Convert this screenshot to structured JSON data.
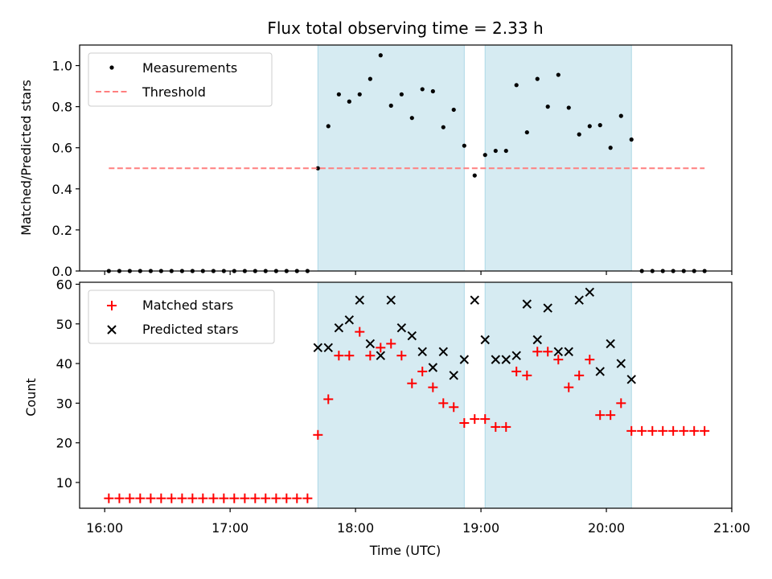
{
  "chart_data": [
    {
      "type": "scatter",
      "title": "Flux total observing time = 2.33 h",
      "xlabel": "",
      "ylabel": "Matched/Predicted stars",
      "xlim": [
        15.8,
        21.0
      ],
      "ylim": [
        0.0,
        1.1
      ],
      "yticks": [
        0.0,
        0.2,
        0.4,
        0.6,
        0.8,
        1.0
      ],
      "ytick_labels": [
        "0.0",
        "0.2",
        "0.4",
        "0.6",
        "0.8",
        "1.0"
      ],
      "legend_position": "top-left",
      "shaded_intervals": [
        [
          17.7,
          18.867
        ],
        [
          19.033,
          20.2
        ]
      ],
      "series": [
        {
          "name": "Measurements",
          "marker": "dot",
          "color": "#000000",
          "x": [
            16.033,
            16.117,
            16.2,
            16.283,
            16.367,
            16.45,
            16.533,
            16.617,
            16.7,
            16.783,
            16.867,
            16.95,
            17.033,
            17.117,
            17.2,
            17.283,
            17.367,
            17.45,
            17.533,
            17.617,
            17.7,
            17.783,
            17.867,
            17.95,
            18.033,
            18.117,
            18.2,
            18.283,
            18.367,
            18.45,
            18.533,
            18.617,
            18.7,
            18.783,
            18.867,
            18.95,
            19.033,
            19.117,
            19.2,
            19.283,
            19.367,
            19.45,
            19.533,
            19.617,
            19.7,
            19.783,
            19.867,
            19.95,
            20.033,
            20.117,
            20.2,
            20.283,
            20.367,
            20.45,
            20.533,
            20.617,
            20.7,
            20.783
          ],
          "values": [
            0,
            0,
            0,
            0,
            0,
            0,
            0,
            0,
            0,
            0,
            0,
            0,
            0,
            0,
            0,
            0,
            0,
            0,
            0,
            0,
            0.5,
            0.705,
            0.86,
            0.825,
            0.86,
            0.935,
            1.05,
            0.805,
            0.86,
            0.745,
            0.885,
            0.875,
            0.7,
            0.785,
            0.61,
            0.465,
            0.565,
            0.585,
            0.585,
            0.905,
            0.675,
            0.935,
            0.8,
            0.955,
            0.795,
            0.665,
            0.705,
            0.71,
            0.6,
            0.755,
            0.64,
            0,
            0,
            0,
            0,
            0,
            0,
            0
          ]
        },
        {
          "name": "Threshold",
          "style": "dashed",
          "color": "#ff7f7f",
          "x": [
            16.033,
            20.783
          ],
          "values": [
            0.5,
            0.5
          ]
        }
      ]
    },
    {
      "type": "scatter",
      "title": "",
      "xlabel": "Time (UTC)",
      "ylabel": "Count",
      "xlim": [
        15.8,
        21.0
      ],
      "ylim": [
        3.5,
        60.5
      ],
      "xticks": [
        16,
        17,
        18,
        19,
        20,
        21
      ],
      "xtick_labels": [
        "16:00",
        "17:00",
        "18:00",
        "19:00",
        "20:00",
        "21:00"
      ],
      "yticks": [
        10,
        20,
        30,
        40,
        50,
        60
      ],
      "ytick_labels": [
        "10",
        "20",
        "30",
        "40",
        "50",
        "60"
      ],
      "legend_position": "top-left",
      "shaded_intervals": [
        [
          17.7,
          18.867
        ],
        [
          19.033,
          20.2
        ]
      ],
      "series": [
        {
          "name": "Matched stars",
          "marker": "plus",
          "color": "#ff0000",
          "x": [
            16.033,
            16.117,
            16.2,
            16.283,
            16.367,
            16.45,
            16.533,
            16.617,
            16.7,
            16.783,
            16.867,
            16.95,
            17.033,
            17.117,
            17.2,
            17.283,
            17.367,
            17.45,
            17.533,
            17.617,
            17.7,
            17.783,
            17.867,
            17.95,
            18.033,
            18.117,
            18.2,
            18.283,
            18.367,
            18.45,
            18.533,
            18.617,
            18.7,
            18.783,
            18.867,
            18.95,
            19.033,
            19.117,
            19.2,
            19.283,
            19.367,
            19.45,
            19.533,
            19.617,
            19.7,
            19.783,
            19.867,
            19.95,
            20.033,
            20.117,
            20.2,
            20.283,
            20.367,
            20.45,
            20.533,
            20.617,
            20.7,
            20.783
          ],
          "values": [
            6,
            6,
            6,
            6,
            6,
            6,
            6,
            6,
            6,
            6,
            6,
            6,
            6,
            6,
            6,
            6,
            6,
            6,
            6,
            6,
            22,
            31,
            42,
            42,
            48,
            42,
            44,
            45,
            42,
            35,
            38,
            34,
            30,
            29,
            25,
            26,
            26,
            24,
            24,
            38,
            37,
            43,
            43,
            41,
            34,
            37,
            41,
            27,
            27,
            30,
            23,
            23,
            23,
            23,
            23,
            23,
            23,
            23
          ]
        },
        {
          "name": "Predicted stars",
          "marker": "x",
          "color": "#000000",
          "x": [
            17.7,
            17.783,
            17.867,
            17.95,
            18.033,
            18.117,
            18.2,
            18.283,
            18.367,
            18.45,
            18.533,
            18.617,
            18.7,
            18.783,
            18.867,
            18.95,
            19.033,
            19.117,
            19.2,
            19.283,
            19.367,
            19.45,
            19.533,
            19.617,
            19.7,
            19.783,
            19.867,
            19.95,
            20.033,
            20.117,
            20.2
          ],
          "values": [
            44,
            44,
            49,
            51,
            56,
            45,
            42,
            56,
            49,
            47,
            43,
            39,
            43,
            37,
            41,
            56,
            46,
            41,
            41,
            42,
            55,
            46,
            54,
            43,
            43,
            56,
            58,
            38,
            45,
            40,
            36
          ]
        }
      ]
    }
  ]
}
